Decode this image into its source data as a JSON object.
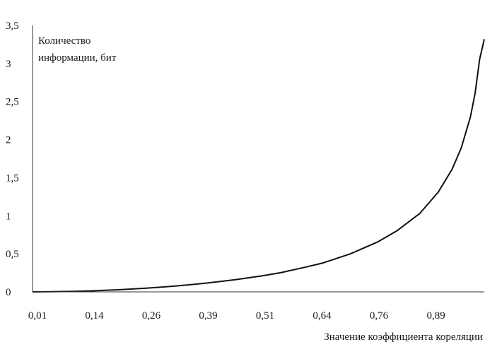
{
  "chart_data": {
    "type": "line",
    "title": "",
    "ylabel_lines": [
      "Количество",
      "информации, бит"
    ],
    "xlabel": "Значение коэффициента кореляции",
    "x_ticks": [
      "0,01",
      "0,14",
      "0,26",
      "0,39",
      "0,51",
      "0,64",
      "0,76",
      "0,89"
    ],
    "y_ticks": [
      "0",
      "0,5",
      "1",
      "1,5",
      "2",
      "2,5",
      "3",
      "3,5"
    ],
    "ylim": [
      0,
      3.5
    ],
    "xlim": [
      0.01,
      0.99
    ],
    "grid": false,
    "legend": "none",
    "series": [
      {
        "x": [
          0.01,
          0.05,
          0.1,
          0.14,
          0.2,
          0.26,
          0.3,
          0.35,
          0.39,
          0.45,
          0.51,
          0.55,
          0.6,
          0.64,
          0.7,
          0.76,
          0.8,
          0.85,
          0.89,
          0.92,
          0.94,
          0.96,
          0.97,
          0.98,
          0.99
        ],
        "values": [
          0.0,
          0.002,
          0.007,
          0.014,
          0.029,
          0.05,
          0.067,
          0.093,
          0.117,
          0.16,
          0.213,
          0.254,
          0.322,
          0.38,
          0.5,
          0.66,
          0.8,
          1.03,
          1.31,
          1.61,
          1.89,
          2.3,
          2.61,
          3.06,
          3.32
        ]
      }
    ],
    "colors": {
      "line": "#111111",
      "axis": "#333333",
      "plot_bg": "#ffffff"
    }
  }
}
